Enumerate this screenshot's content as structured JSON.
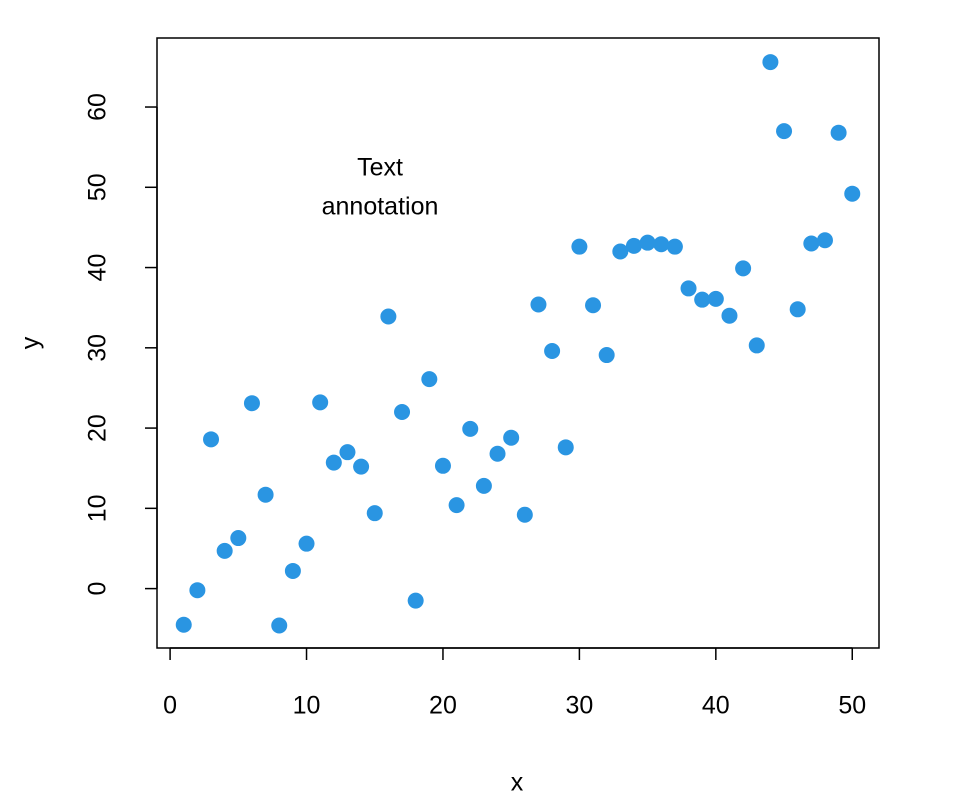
{
  "chart_data": {
    "type": "scatter",
    "x_label": "x",
    "y_label": "y",
    "annotation": [
      "Text",
      "annotation"
    ],
    "x": [
      1,
      2,
      3,
      4,
      5,
      6,
      7,
      8,
      9,
      10,
      11,
      12,
      13,
      14,
      15,
      16,
      17,
      18,
      19,
      20,
      21,
      22,
      23,
      24,
      25,
      26,
      27,
      28,
      29,
      30,
      31,
      32,
      33,
      34,
      35,
      36,
      37,
      38,
      39,
      40,
      41,
      42,
      43,
      44,
      45,
      46,
      47,
      48,
      49,
      50
    ],
    "series": [
      {
        "color": "#2a95e2",
        "values": [
          -4.5,
          -0.2,
          18.6,
          4.7,
          6.3,
          23.1,
          11.7,
          -4.6,
          2.2,
          5.6,
          23.2,
          15.7,
          17.0,
          15.2,
          9.4,
          33.9,
          22.0,
          -1.5,
          26.1,
          15.3,
          10.4,
          19.9,
          12.8,
          16.8,
          18.8,
          9.2,
          35.4,
          29.6,
          17.6,
          42.6,
          35.3,
          29.1,
          42.0,
          42.7,
          43.1,
          42.9,
          42.6,
          37.4,
          36.0,
          36.1,
          34.0,
          39.9,
          30.3,
          65.6,
          57.0,
          34.8,
          43.0,
          43.4,
          56.8,
          49.2
        ]
      }
    ],
    "xlim": [
      -0.96,
      51.96
    ],
    "ylim": [
      -7.4,
      68.6
    ],
    "xticks": [
      0,
      10,
      20,
      30,
      40,
      50
    ],
    "yticks": [
      0,
      10,
      20,
      30,
      40,
      50,
      60
    ]
  }
}
